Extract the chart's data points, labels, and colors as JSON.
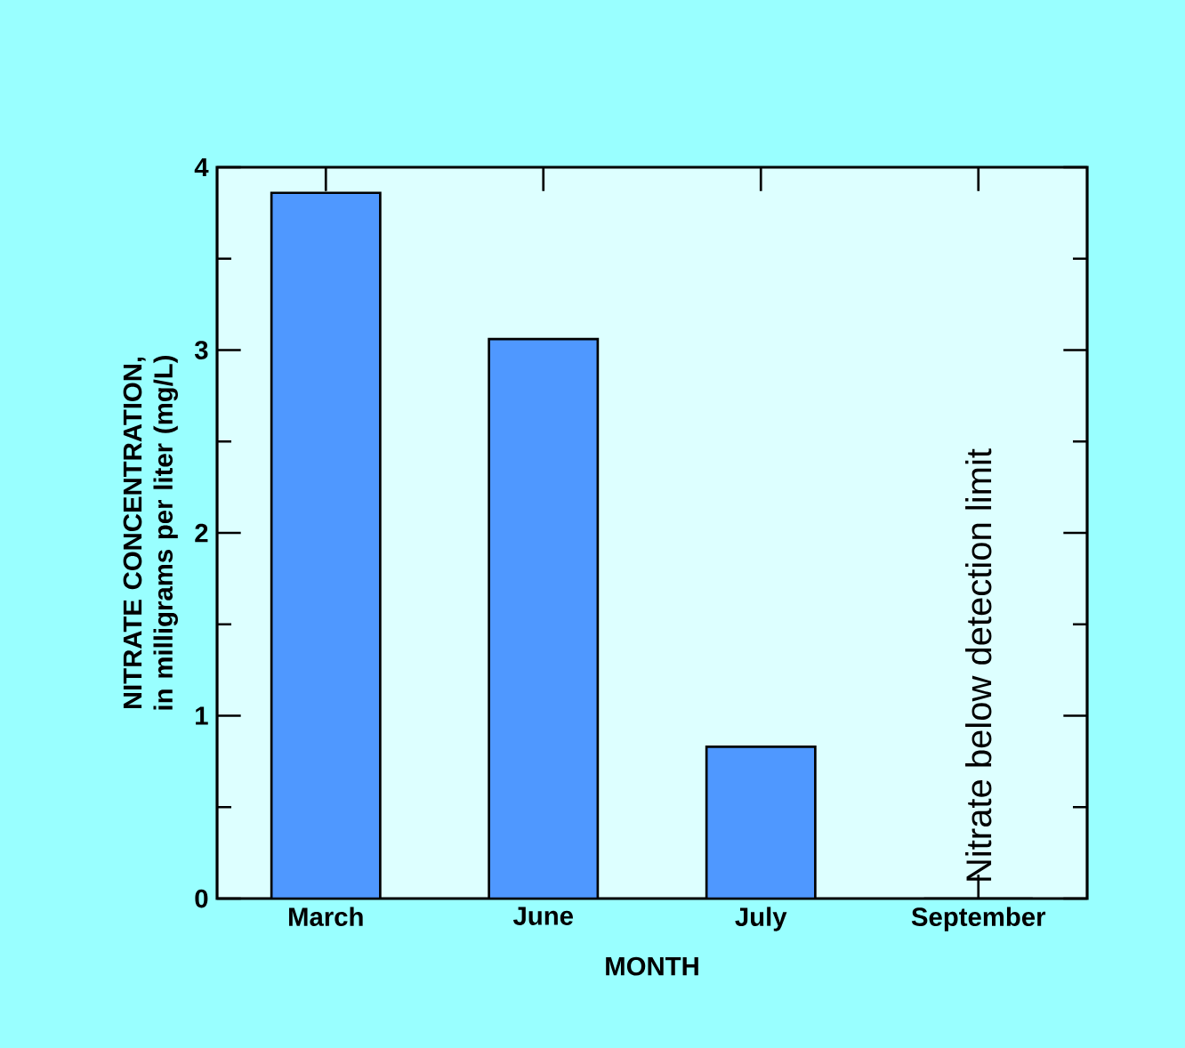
{
  "chart_data": {
    "type": "bar",
    "xlabel": "MONTH",
    "ylabel": "NITRATE CONCENTRATION, in milligrams per liter (mg/L)",
    "categories": [
      "March",
      "June",
      "July",
      "September"
    ],
    "values": [
      3.86,
      3.06,
      0.83,
      0
    ],
    "color": "#4f98ff",
    "ylim": [
      0,
      4
    ],
    "yticks": [
      0,
      1,
      2,
      3,
      4
    ],
    "annotations": [
      {
        "text": "Nitrate below detection limit",
        "x": "September",
        "y": 0
      }
    ]
  }
}
